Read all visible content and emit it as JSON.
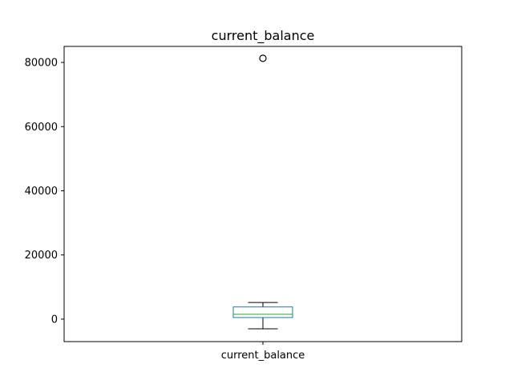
{
  "chart_data": {
    "type": "box",
    "title": "current_balance",
    "categories": [
      "current_balance"
    ],
    "xlabel": "",
    "ylabel": "",
    "ylim": [
      -7000,
      85000
    ],
    "yticks": [
      0,
      20000,
      40000,
      60000,
      80000
    ],
    "ytick_labels": [
      "0",
      "20000",
      "40000",
      "60000",
      "80000"
    ],
    "grid": false,
    "boxes": [
      {
        "name": "current_balance",
        "whisker_low": -3000,
        "q1": 500,
        "median": 1500,
        "q3": 3800,
        "whisker_high": 5200,
        "outliers": [
          81300
        ]
      }
    ],
    "colors": {
      "box": "#1f77b4",
      "median": "#2ca02c",
      "whisker": "#000000",
      "outlier": "#000000"
    }
  }
}
